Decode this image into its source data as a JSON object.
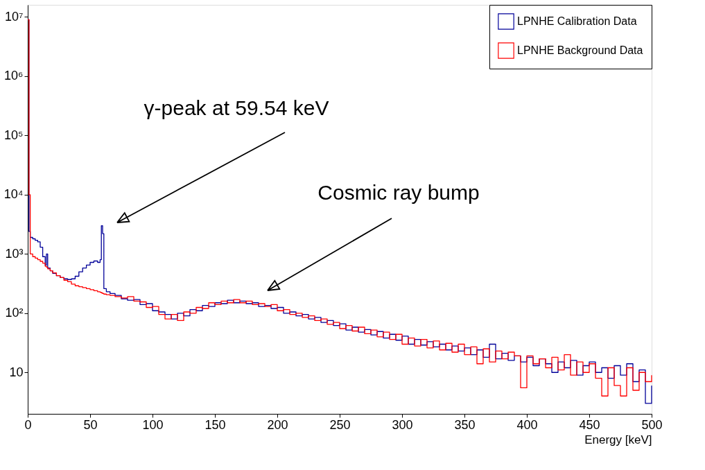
{
  "chart_data": {
    "type": "step",
    "xlabel": "Energy [keV]",
    "x": [
      0,
      1,
      2,
      4,
      6,
      8,
      10,
      12,
      14,
      15,
      16,
      18,
      20,
      23,
      26,
      29,
      32,
      35,
      38,
      41,
      44,
      47,
      50,
      53,
      56,
      58,
      59,
      60,
      61,
      63,
      66,
      70,
      75,
      80,
      85,
      90,
      95,
      100,
      105,
      110,
      115,
      120,
      125,
      130,
      135,
      140,
      145,
      150,
      155,
      160,
      165,
      170,
      175,
      180,
      185,
      190,
      195,
      200,
      205,
      210,
      215,
      220,
      225,
      230,
      235,
      240,
      245,
      250,
      255,
      260,
      265,
      270,
      275,
      280,
      285,
      290,
      295,
      300,
      305,
      310,
      315,
      320,
      325,
      330,
      335,
      340,
      345,
      350,
      355,
      360,
      365,
      370,
      375,
      380,
      385,
      390,
      395,
      400,
      405,
      410,
      415,
      420,
      425,
      430,
      435,
      440,
      445,
      450,
      455,
      460,
      465,
      470,
      475,
      480,
      485,
      490,
      495,
      500
    ],
    "series": [
      {
        "name": "LPNHE Calibration Data",
        "color": "#000099",
        "values": [
          9000000,
          2400,
          1900,
          1800,
          1700,
          1600,
          1300,
          900,
          650,
          1000,
          580,
          520,
          470,
          430,
          400,
          380,
          370,
          380,
          420,
          500,
          580,
          650,
          720,
          760,
          720,
          800,
          3000,
          2200,
          260,
          230,
          215,
          200,
          175,
          165,
          170,
          140,
          145,
          110,
          105,
          95,
          80,
          100,
          90,
          115,
          110,
          135,
          130,
          150,
          145,
          165,
          150,
          160,
          145,
          150,
          130,
          135,
          120,
          125,
          100,
          105,
          90,
          95,
          80,
          85,
          70,
          75,
          62,
          66,
          52,
          58,
          48,
          53,
          43,
          49,
          38,
          44,
          35,
          41,
          30,
          36,
          29,
          33,
          27,
          30,
          24,
          28,
          23,
          26,
          20,
          24,
          18,
          30,
          17,
          21,
          16,
          19,
          15,
          18,
          13,
          17,
          14,
          10,
          15,
          12,
          16,
          9,
          13,
          15,
          10,
          12,
          8,
          13,
          9,
          14,
          7,
          11,
          3,
          6
        ]
      },
      {
        "name": "LPNHE Background Data",
        "color": "#ff0000",
        "values": [
          9000000,
          10000,
          1000,
          900,
          850,
          800,
          750,
          700,
          620,
          600,
          560,
          520,
          480,
          430,
          400,
          360,
          340,
          310,
          290,
          280,
          270,
          260,
          250,
          240,
          230,
          225,
          220,
          215,
          210,
          205,
          200,
          190,
          180,
          190,
          160,
          155,
          125,
          130,
          95,
          80,
          95,
          75,
          105,
          100,
          125,
          120,
          150,
          140,
          160,
          150,
          170,
          150,
          160,
          140,
          145,
          130,
          140,
          110,
          115,
          95,
          100,
          85,
          90,
          75,
          80,
          65,
          70,
          55,
          62,
          50,
          58,
          45,
          52,
          40,
          48,
          36,
          44,
          30,
          38,
          28,
          36,
          26,
          34,
          24,
          31,
          22,
          30,
          20,
          27,
          14,
          25,
          15,
          23,
          17,
          22,
          19,
          5.5,
          19,
          14,
          17,
          12,
          18,
          11,
          20,
          9,
          15,
          10,
          14,
          8,
          4,
          12,
          6,
          4,
          12,
          5,
          10,
          7,
          9
        ]
      }
    ],
    "log": true,
    "xlim": [
      0,
      500
    ],
    "xticks": [
      0,
      50,
      100,
      150,
      200,
      250,
      300,
      350,
      400,
      450,
      500
    ],
    "ylim": [
      2,
      16000000
    ],
    "yticks": [
      10,
      {
        "value": 100,
        "label": "10²"
      },
      {
        "value": 1000,
        "label": "10³"
      },
      {
        "value": 10000,
        "label": "10⁴"
      },
      {
        "value": 100000,
        "label": "10⁵"
      },
      {
        "value": 1000000,
        "label": "10⁶"
      },
      {
        "value": 10000000,
        "label": "10⁷"
      }
    ],
    "legend": "top right",
    "grid": false,
    "annotations": [
      "γ-peak at 59.54 keV",
      "Cosmic ray bump"
    ]
  }
}
